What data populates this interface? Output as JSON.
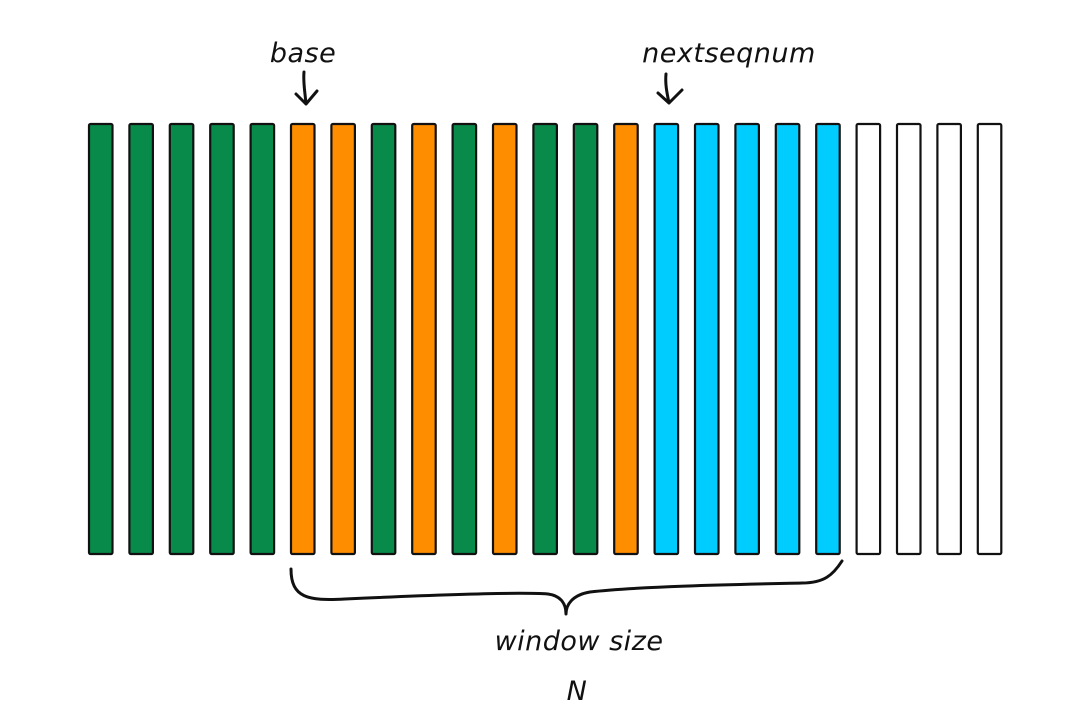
{
  "labels": {
    "base": "base",
    "nextseqnum": "nextseqnum",
    "window_size": "window size",
    "window_n": "N"
  },
  "colors": {
    "acked": "#078a4a",
    "sent_not_acked": "#fe8d00",
    "usable_not_sent": "#00ccfd",
    "not_usable": "#ffffff"
  },
  "sequence": [
    "acked",
    "acked",
    "acked",
    "acked",
    "acked",
    "sent_not_acked",
    "sent_not_acked",
    "acked",
    "sent_not_acked",
    "acked",
    "sent_not_acked",
    "acked",
    "acked",
    "sent_not_acked",
    "usable_not_sent",
    "usable_not_sent",
    "usable_not_sent",
    "usable_not_sent",
    "usable_not_sent",
    "not_usable",
    "not_usable",
    "not_usable",
    "not_usable"
  ],
  "pointers": {
    "base_index": 5,
    "nextseqnum_index": 14
  },
  "window": {
    "start_index": 5,
    "end_index": 18
  }
}
